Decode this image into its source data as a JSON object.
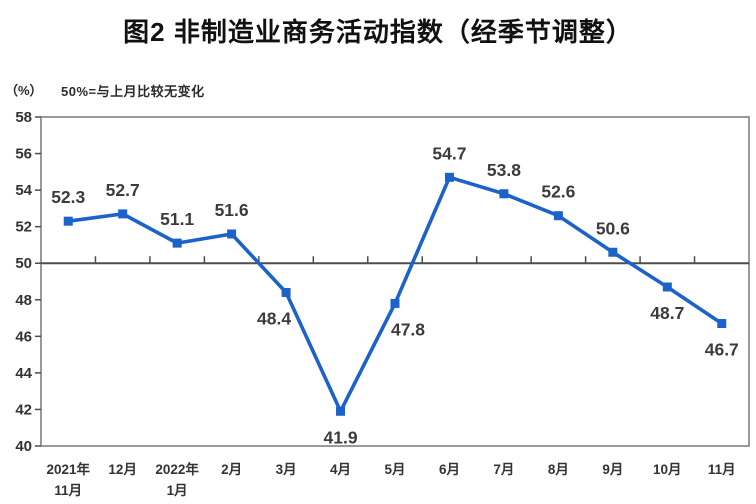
{
  "title": "图2 非制造业商务活动指数（经季节调整）",
  "unit_label": "（%）",
  "note": "50%=与上月比较无变化",
  "chart_data": {
    "type": "line",
    "title": "图2 非制造业商务活动指数（经季节调整）",
    "ylabel": "（%）",
    "annotation": "50%=与上月比较无变化",
    "categories": [
      [
        "2021年",
        "11月"
      ],
      [
        "12月"
      ],
      [
        "2022年",
        "1月"
      ],
      [
        "2月"
      ],
      [
        "3月"
      ],
      [
        "4月"
      ],
      [
        "5月"
      ],
      [
        "6月"
      ],
      [
        "7月"
      ],
      [
        "8月"
      ],
      [
        "9月"
      ],
      [
        "10月"
      ],
      [
        "11月"
      ]
    ],
    "series": [
      {
        "name": "非制造业商务活动指数",
        "values": [
          52.3,
          52.7,
          51.1,
          51.6,
          48.4,
          41.9,
          47.8,
          54.7,
          53.8,
          52.6,
          50.6,
          48.7,
          46.7
        ]
      }
    ],
    "yticks": [
      58,
      56,
      54,
      52,
      50,
      48,
      46,
      44,
      42,
      40
    ],
    "ylim": [
      40,
      58
    ],
    "reference_line": 50,
    "grid": false,
    "legend_position": "none",
    "marker": "square",
    "colors": {
      "line": "#1b63c8",
      "data_label": "#3c3c3c",
      "axis_label": "#333333",
      "plot_border": "#808080",
      "axis_line": "#4d4d4d"
    }
  }
}
